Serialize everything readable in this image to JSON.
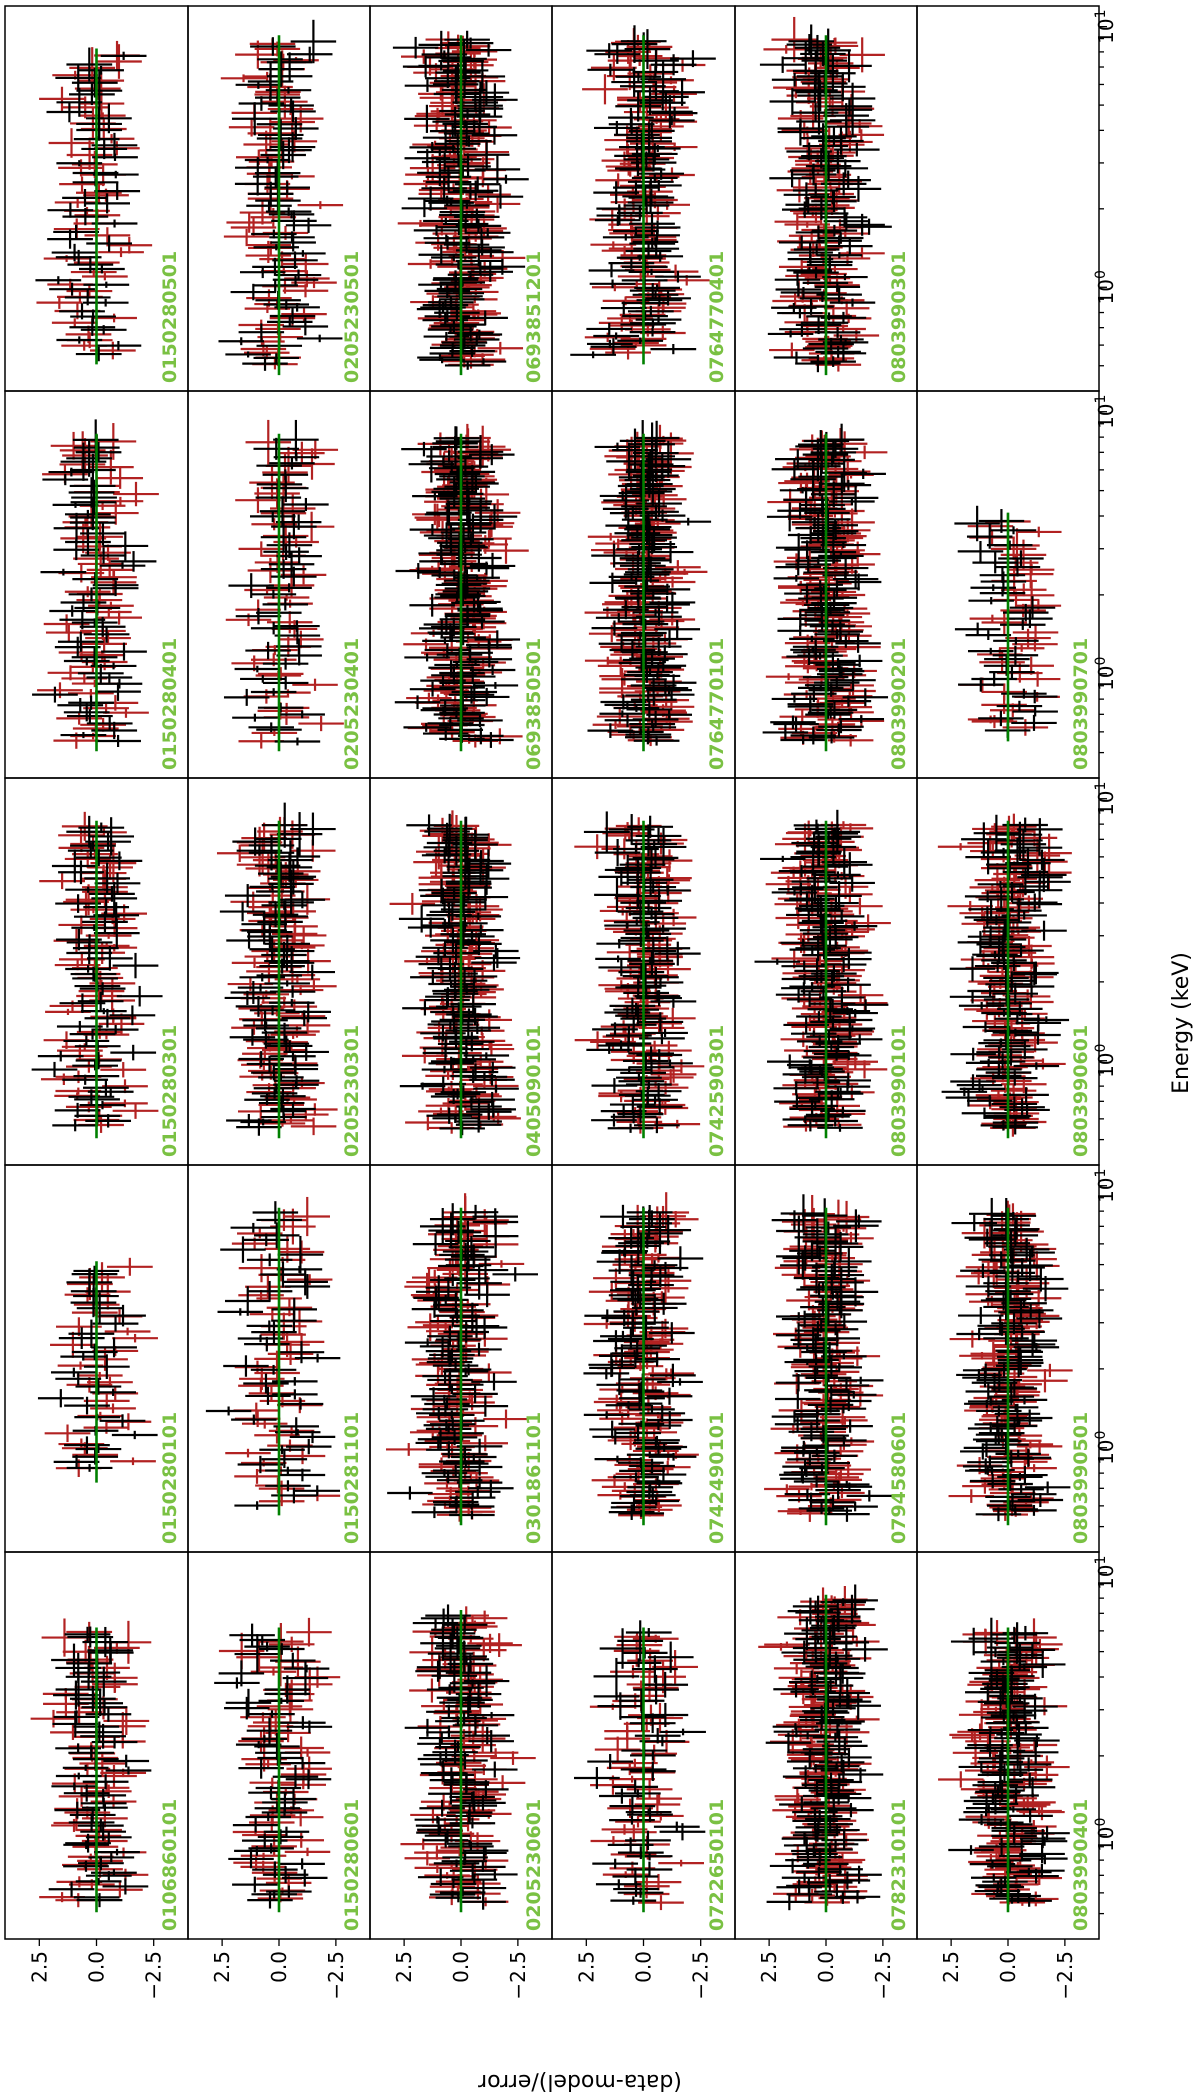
{
  "figure": {
    "xlabel": "Energy (keV)",
    "ylabel": "(data-model)/error",
    "xscale": "log",
    "x_tick_labels": [
      "10^0",
      "10^1"
    ],
    "y_tick_labels": [
      "2.5",
      "0.0",
      "−2.5"
    ],
    "orientation": "rotated 90 degrees clockwise",
    "colors": {
      "instrument_1": "#000000",
      "instrument_2": "#b22222",
      "model_line": "#008000",
      "obsid_label": "#7ac143"
    }
  },
  "chart_data": {
    "type": "scatter",
    "description_of_values": "residuals with error crosses; two series per panel scattered around 0 with spread roughly ±3",
    "xlabel": "Energy (keV)",
    "ylabel": "(data-model)/error",
    "xscale": "log",
    "xlim": [
      0.4,
      12
    ],
    "ylim": [
      -4,
      4
    ],
    "reference_line_y": 0,
    "grid": false,
    "panels": [
      {
        "obsid": "0106860101",
        "row": 0,
        "col": 0,
        "emin": 0.55,
        "emax": 6.0,
        "n": 55
      },
      {
        "obsid": "0150280101",
        "row": 0,
        "col": 1,
        "emin": 0.8,
        "emax": 5.0,
        "n": 30
      },
      {
        "obsid": "0150280301",
        "row": 0,
        "col": 2,
        "emin": 0.55,
        "emax": 8.0,
        "n": 60
      },
      {
        "obsid": "0150280401",
        "row": 0,
        "col": 3,
        "emin": 0.55,
        "emax": 8.0,
        "n": 55
      },
      {
        "obsid": "0150280501",
        "row": 0,
        "col": 4,
        "emin": 0.55,
        "emax": 8.0,
        "n": 45
      },
      {
        "obsid": "0150280601",
        "row": 1,
        "col": 0,
        "emin": 0.55,
        "emax": 6.0,
        "n": 50
      },
      {
        "obsid": "0150281101",
        "row": 1,
        "col": 1,
        "emin": 0.6,
        "emax": 8.0,
        "n": 45
      },
      {
        "obsid": "0205230301",
        "row": 1,
        "col": 2,
        "emin": 0.55,
        "emax": 8.0,
        "n": 80
      },
      {
        "obsid": "0205230401",
        "row": 1,
        "col": 3,
        "emin": 0.55,
        "emax": 8.0,
        "n": 45
      },
      {
        "obsid": "0205230501",
        "row": 1,
        "col": 4,
        "emin": 0.5,
        "emax": 9.0,
        "n": 60
      },
      {
        "obsid": "0205230601",
        "row": 2,
        "col": 0,
        "emin": 0.55,
        "emax": 7.0,
        "n": 85
      },
      {
        "obsid": "0301861101",
        "row": 2,
        "col": 1,
        "emin": 0.55,
        "emax": 8.0,
        "n": 90
      },
      {
        "obsid": "0405090101",
        "row": 2,
        "col": 2,
        "emin": 0.55,
        "emax": 8.0,
        "n": 110
      },
      {
        "obsid": "0693850501",
        "row": 2,
        "col": 3,
        "emin": 0.55,
        "emax": 8.0,
        "n": 120
      },
      {
        "obsid": "0693851201",
        "row": 2,
        "col": 4,
        "emin": 0.5,
        "emax": 9.0,
        "n": 120
      },
      {
        "obsid": "0722650101",
        "row": 3,
        "col": 0,
        "emin": 0.55,
        "emax": 6.0,
        "n": 45
      },
      {
        "obsid": "0742490101",
        "row": 3,
        "col": 1,
        "emin": 0.55,
        "emax": 8.0,
        "n": 90
      },
      {
        "obsid": "0742590301",
        "row": 3,
        "col": 2,
        "emin": 0.55,
        "emax": 8.0,
        "n": 90
      },
      {
        "obsid": "0764770101",
        "row": 3,
        "col": 3,
        "emin": 0.55,
        "emax": 8.0,
        "n": 110
      },
      {
        "obsid": "0764770401",
        "row": 3,
        "col": 4,
        "emin": 0.55,
        "emax": 9.0,
        "n": 90
      },
      {
        "obsid": "0782310101",
        "row": 4,
        "col": 0,
        "emin": 0.55,
        "emax": 8.0,
        "n": 110
      },
      {
        "obsid": "0794580601",
        "row": 4,
        "col": 1,
        "emin": 0.55,
        "emax": 8.0,
        "n": 100
      },
      {
        "obsid": "0803990101",
        "row": 4,
        "col": 2,
        "emin": 0.55,
        "emax": 8.0,
        "n": 110
      },
      {
        "obsid": "0803990201",
        "row": 4,
        "col": 3,
        "emin": 0.55,
        "emax": 8.0,
        "n": 110
      },
      {
        "obsid": "0803990301",
        "row": 4,
        "col": 4,
        "emin": 0.5,
        "emax": 9.0,
        "n": 100
      },
      {
        "obsid": "0803990401",
        "row": 5,
        "col": 0,
        "emin": 0.55,
        "emax": 6.0,
        "n": 95
      },
      {
        "obsid": "0803990501",
        "row": 5,
        "col": 1,
        "emin": 0.55,
        "emax": 8.0,
        "n": 100
      },
      {
        "obsid": "0803990601",
        "row": 5,
        "col": 2,
        "emin": 0.55,
        "emax": 8.0,
        "n": 100
      },
      {
        "obsid": "0803990701",
        "row": 5,
        "col": 3,
        "emin": 0.6,
        "emax": 4.0,
        "n": 35
      }
    ]
  }
}
